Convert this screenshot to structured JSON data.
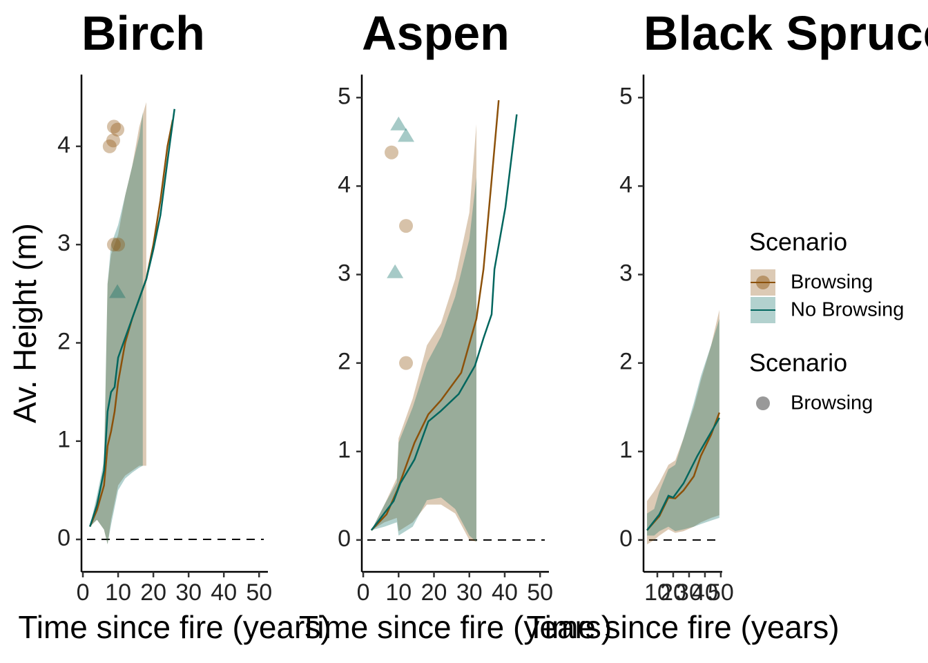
{
  "chart_data": [
    {
      "type": "line",
      "title": "Birch",
      "xlabel": "Time since fire (years)",
      "ylabel": "Av. Height (m)",
      "legend_title": "Scenario",
      "xlim": [
        -0.4,
        52.5
      ],
      "ylim": [
        -0.33,
        4.73
      ],
      "xticks": [
        0,
        10,
        20,
        30,
        40,
        50
      ],
      "yticks": [
        0,
        1,
        2,
        3,
        4
      ],
      "hline": 0,
      "series": [
        {
          "name": "Browsing",
          "color": "#8c510a",
          "x": [
            2,
            4,
            6,
            7,
            8,
            9,
            10,
            12,
            14,
            16,
            18,
            20,
            22,
            24,
            25.5
          ],
          "values": [
            0.13,
            0.3,
            0.55,
            0.95,
            1.1,
            1.3,
            1.6,
            2.0,
            2.25,
            2.45,
            2.65,
            3.0,
            3.45,
            4.0,
            4.27
          ],
          "band": {
            "x": [
              2,
              4,
              6,
              7,
              8,
              10,
              12,
              14,
              16,
              18
            ],
            "lower": [
              0.13,
              0.2,
              0.1,
              -0.05,
              0.2,
              0.55,
              0.65,
              0.7,
              0.75,
              0.75
            ],
            "upper": [
              0.13,
              0.4,
              0.7,
              2.6,
              2.9,
              3.1,
              3.5,
              3.8,
              4.2,
              4.45
            ]
          }
        },
        {
          "name": "No Browsing",
          "color": "#01665e",
          "x": [
            2,
            4,
            6,
            7,
            8,
            9,
            10,
            12,
            14,
            16,
            18,
            20,
            22,
            24,
            26
          ],
          "values": [
            0.13,
            0.35,
            0.7,
            1.3,
            1.5,
            1.55,
            1.85,
            2.05,
            2.25,
            2.45,
            2.65,
            2.95,
            3.3,
            3.85,
            4.38
          ],
          "band": {
            "x": [
              2,
              4,
              6,
              7,
              8,
              10,
              12,
              14,
              16,
              17
            ],
            "lower": [
              0.13,
              0.2,
              0.1,
              -0.05,
              0.15,
              0.5,
              0.62,
              0.68,
              0.73,
              0.75
            ],
            "upper": [
              0.13,
              0.45,
              0.8,
              2.6,
              3.0,
              3.2,
              3.5,
              3.8,
              4.1,
              4.35
            ]
          }
        }
      ],
      "points": [
        {
          "name": "Browsing",
          "color": "#8c510a",
          "shape": "circle",
          "x": [
            7.6,
            8.8,
            9.8,
            8.6,
            8.8,
            10
          ],
          "y": [
            4.0,
            4.2,
            4.17,
            4.06,
            3.0,
            3.0
          ]
        },
        {
          "name": "No Browsing",
          "color": "#01665e",
          "shape": "triangle",
          "x": [
            9.8
          ],
          "y": [
            2.52
          ]
        }
      ]
    },
    {
      "type": "line",
      "title": "Aspen",
      "xlabel": "Time since fire (years)",
      "xlim": [
        -0.4,
        52.5
      ],
      "ylim": [
        -0.36,
        5.26
      ],
      "xticks": [
        0,
        10,
        20,
        30,
        40,
        50
      ],
      "yticks": [
        0,
        1,
        2,
        3,
        4,
        5
      ],
      "hline": 0,
      "series": [
        {
          "name": "Browsing",
          "color": "#8c510a",
          "x": [
            2.3,
            6.6,
            9.6,
            14.5,
            18.4,
            22,
            27.7,
            32,
            34,
            36.3,
            38.3
          ],
          "values": [
            0.11,
            0.29,
            0.56,
            1.1,
            1.42,
            1.58,
            1.89,
            2.5,
            3.06,
            4.07,
            4.97
          ],
          "band": {
            "x": [
              2.3,
              6,
              9.5,
              10,
              14,
              18,
              22,
              26,
              30,
              32
            ],
            "lower": [
              0.11,
              0.2,
              0.25,
              0.1,
              0.2,
              0.4,
              0.4,
              0.3,
              0.0,
              -0.02
            ],
            "upper": [
              0.11,
              0.4,
              0.7,
              1.15,
              1.6,
              2.2,
              2.45,
              2.95,
              3.7,
              4.7
            ]
          }
        },
        {
          "name": "No Browsing",
          "color": "#01665e",
          "x": [
            2.3,
            8.6,
            10.5,
            14.5,
            18.4,
            22,
            27,
            31.6,
            34,
            36.3,
            37.1,
            40.2,
            43.4
          ],
          "values": [
            0.11,
            0.44,
            0.64,
            0.91,
            1.34,
            1.46,
            1.65,
            1.97,
            2.28,
            2.55,
            3.06,
            3.76,
            4.81
          ],
          "band": {
            "x": [
              2.3,
              6,
              9.5,
              10,
              14,
              18,
              22,
              26,
              30,
              32
            ],
            "lower": [
              0.11,
              0.15,
              0.2,
              0.05,
              0.15,
              0.45,
              0.48,
              0.35,
              0.05,
              -0.02
            ],
            "upper": [
              0.11,
              0.4,
              0.65,
              1.1,
              1.5,
              2.0,
              2.3,
              2.75,
              3.4,
              4.1
            ]
          }
        }
      ],
      "points": [
        {
          "name": "Browsing",
          "color": "#8c510a",
          "shape": "circle",
          "x": [
            8,
            12.1,
            12.1
          ],
          "y": [
            4.38,
            3.55,
            2.0
          ]
        },
        {
          "name": "No Browsing",
          "color": "#01665e",
          "shape": "triangle",
          "x": [
            10,
            12.1,
            9
          ],
          "y": [
            4.7,
            4.57,
            3.03
          ]
        }
      ]
    },
    {
      "type": "line",
      "title": "Black Spruce",
      "xlabel": "Time since fire (years)",
      "xlim": [
        1.3,
        50.9
      ],
      "ylim": [
        -0.36,
        5.26
      ],
      "xticks": [
        10,
        20,
        30,
        40,
        50
      ],
      "yticks": [
        0,
        1,
        2,
        3,
        4,
        5
      ],
      "hline": 0,
      "series": [
        {
          "name": "Browsing",
          "color": "#8c510a",
          "x": [
            3.5,
            11.3,
            17,
            21.3,
            26.5,
            33,
            37.4,
            43.9,
            49.1
          ],
          "values": [
            0.11,
            0.27,
            0.48,
            0.47,
            0.56,
            0.72,
            0.95,
            1.19,
            1.44
          ],
          "band": {
            "x": [
              3.5,
              8,
              11.3,
              17,
              21.3,
              26.5,
              33,
              37.4,
              43.9,
              49.1
            ],
            "lower": [
              -0.05,
              0.0,
              0.05,
              0.12,
              0.08,
              0.1,
              0.15,
              0.2,
              0.25,
              0.28
            ],
            "upper": [
              0.44,
              0.55,
              0.65,
              0.85,
              0.9,
              1.15,
              1.5,
              1.8,
              2.2,
              2.6
            ]
          }
        },
        {
          "name": "No Browsing",
          "color": "#01665e",
          "x": [
            3.5,
            11.3,
            17,
            20,
            26.5,
            35.2,
            43.9,
            49.1
          ],
          "values": [
            0.11,
            0.29,
            0.5,
            0.48,
            0.64,
            0.95,
            1.22,
            1.38
          ],
          "band": {
            "x": [
              3.5,
              8,
              11.3,
              17,
              21.3,
              26.5,
              33,
              37.4,
              43.9,
              49.1
            ],
            "lower": [
              0.05,
              0.05,
              0.1,
              0.15,
              0.1,
              0.12,
              0.15,
              0.18,
              0.22,
              0.25
            ],
            "upper": [
              0.3,
              0.35,
              0.55,
              0.8,
              0.85,
              1.15,
              1.55,
              1.85,
              2.2,
              2.5
            ]
          }
        }
      ]
    }
  ]
}
